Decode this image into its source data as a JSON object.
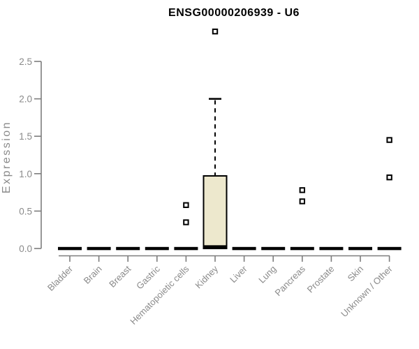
{
  "chart_data": {
    "type": "boxplot",
    "title": "ENSG00000206939 - U6",
    "xlabel": "",
    "ylabel": "Expression",
    "ylim": [
      0,
      2.5
    ],
    "yticks": [
      "0.0",
      "0.5",
      "1.0",
      "1.5",
      "2.0",
      "2.5"
    ],
    "grid": false,
    "legend": "none",
    "categories": [
      "Bladder",
      "Brain",
      "Breast",
      "Gastric",
      "Hematopoietic cells",
      "Kidney",
      "Liver",
      "Lung",
      "Pancreas",
      "Prostate",
      "Skin",
      "Unknown / Other"
    ],
    "boxes": [
      {
        "category": "Bladder",
        "q1": 0,
        "median": 0,
        "q3": 0,
        "whisker_low": 0,
        "whisker_high": 0,
        "outliers": []
      },
      {
        "category": "Brain",
        "q1": 0,
        "median": 0,
        "q3": 0,
        "whisker_low": 0,
        "whisker_high": 0,
        "outliers": []
      },
      {
        "category": "Breast",
        "q1": 0,
        "median": 0,
        "q3": 0,
        "whisker_low": 0,
        "whisker_high": 0,
        "outliers": []
      },
      {
        "category": "Gastric",
        "q1": 0,
        "median": 0,
        "q3": 0,
        "whisker_low": 0,
        "whisker_high": 0,
        "outliers": []
      },
      {
        "category": "Hematopoietic cells",
        "q1": 0,
        "median": 0,
        "q3": 0,
        "whisker_low": 0,
        "whisker_high": 0,
        "outliers": [
          0.58,
          0.35
        ]
      },
      {
        "category": "Kidney",
        "q1": 0,
        "median": 0.02,
        "q3": 0.97,
        "whisker_low": 0,
        "whisker_high": 2.0,
        "outliers": [
          2.9
        ]
      },
      {
        "category": "Liver",
        "q1": 0,
        "median": 0,
        "q3": 0,
        "whisker_low": 0,
        "whisker_high": 0,
        "outliers": []
      },
      {
        "category": "Lung",
        "q1": 0,
        "median": 0,
        "q3": 0,
        "whisker_low": 0,
        "whisker_high": 0,
        "outliers": []
      },
      {
        "category": "Pancreas",
        "q1": 0,
        "median": 0,
        "q3": 0,
        "whisker_low": 0,
        "whisker_high": 0,
        "outliers": [
          0.78,
          0.63
        ]
      },
      {
        "category": "Prostate",
        "q1": 0,
        "median": 0,
        "q3": 0,
        "whisker_low": 0,
        "whisker_high": 0,
        "outliers": []
      },
      {
        "category": "Skin",
        "q1": 0,
        "median": 0,
        "q3": 0,
        "whisker_low": 0,
        "whisker_high": 0,
        "outliers": []
      },
      {
        "category": "Unknown / Other",
        "q1": 0,
        "median": 0,
        "q3": 0,
        "whisker_low": 0,
        "whisker_high": 0,
        "outliers": [
          1.45,
          0.95
        ]
      }
    ],
    "colors": {
      "box_fill": "#EDE8CD",
      "box_border": "#000000",
      "median": "#000000",
      "whisker": "#000000",
      "outlier_fill": "#FFFFFF",
      "outlier_border": "#000000",
      "axis": "#7D7D7D",
      "tick_text": "#8A8A8A",
      "title_text": "#000000",
      "background": "#FFFFFF"
    }
  }
}
